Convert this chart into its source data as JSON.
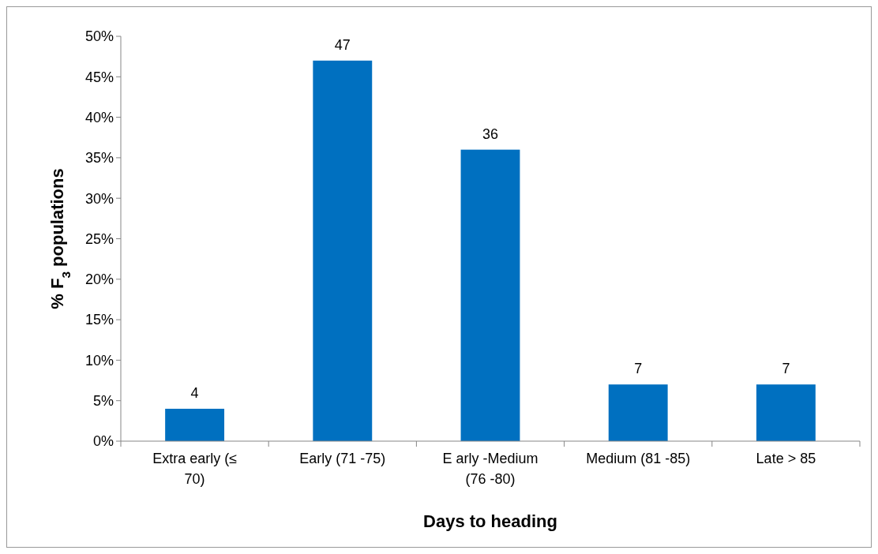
{
  "chart_data": {
    "type": "bar",
    "xlabel": "Days to heading",
    "ylabel": "% F$_{3}$ populations",
    "categories": [
      "Extra early (≤ 70)",
      "Early (71 -75)",
      "E arly -Medium (76 -80)",
      "Medium (81 -85)",
      "Late  > 85"
    ],
    "values": [
      4,
      47,
      36,
      7,
      7
    ],
    "color": "#0070c0",
    "data_labels": true,
    "grid": false,
    "ylim": [
      0,
      50
    ],
    "yticks": [
      {
        "value": 0,
        "label": "0%"
      },
      {
        "value": 5,
        "label": "5%"
      },
      {
        "value": 10,
        "label": "10%"
      },
      {
        "value": 15,
        "label": "15%"
      },
      {
        "value": 20,
        "label": "20%"
      },
      {
        "value": 25,
        "label": "25%"
      },
      {
        "value": 30,
        "label": "30%"
      },
      {
        "value": 35,
        "label": "35%"
      },
      {
        "value": 40,
        "label": "40%"
      },
      {
        "value": 45,
        "label": "45%"
      },
      {
        "value": 50,
        "label": "50%"
      }
    ]
  }
}
